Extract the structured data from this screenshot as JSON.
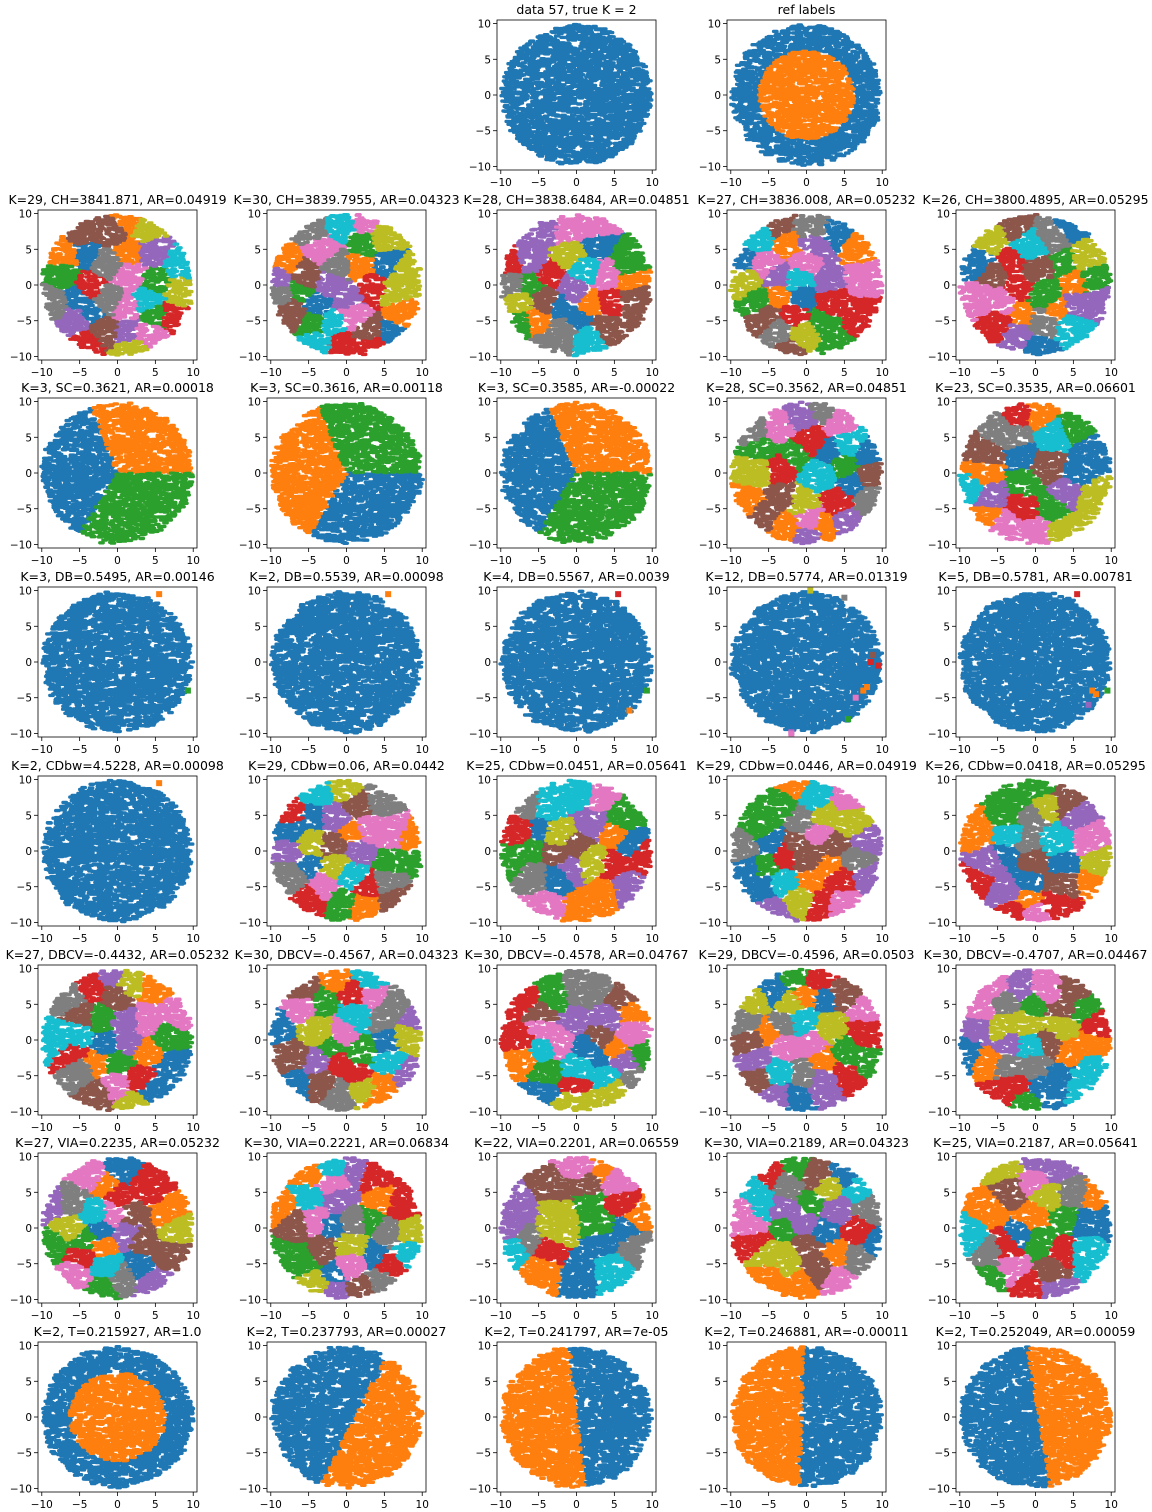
{
  "palette": [
    "#1f77b4",
    "#ff7f0e",
    "#2ca02c",
    "#d62728",
    "#9467bd",
    "#8c564b",
    "#e377c2",
    "#7f7f7f",
    "#bcbd22",
    "#17becf"
  ],
  "chart_data": [
    {
      "type": "scatter",
      "title": "data 57, true K = 2",
      "pattern": "all",
      "k": 1,
      "xlim": [
        -10.5,
        10.5
      ],
      "ylim": [
        -10.5,
        10.5
      ],
      "xticks": [
        -10,
        -5,
        0,
        5,
        10
      ],
      "yticks": [
        -10,
        -5,
        0,
        5,
        10
      ],
      "grid": false
    },
    {
      "type": "scatter",
      "title": "ref labels",
      "pattern": "ring",
      "k": 2,
      "xlim": [
        -10.5,
        10.5
      ],
      "ylim": [
        -10.5,
        10.5
      ],
      "xticks": [
        -10,
        -5,
        0,
        5,
        10
      ],
      "yticks": [
        -10,
        -5,
        0,
        5,
        10
      ],
      "grid": false
    },
    {
      "type": "scatter",
      "title": "K=29, CH=3841.871, AR=0.04919",
      "pattern": "voronoi",
      "k": 29
    },
    {
      "type": "scatter",
      "title": "K=30, CH=3839.7955, AR=0.04323",
      "pattern": "voronoi",
      "k": 30
    },
    {
      "type": "scatter",
      "title": "K=28, CH=3838.6484, AR=0.04851",
      "pattern": "voronoi",
      "k": 28
    },
    {
      "type": "scatter",
      "title": "K=27, CH=3836.008, AR=0.05232",
      "pattern": "voronoi",
      "k": 27
    },
    {
      "type": "scatter",
      "title": "K=26, CH=3800.4895, AR=0.05295",
      "pattern": "voronoi",
      "k": 26
    },
    {
      "type": "scatter",
      "title": "K=3, SC=0.3621, AR=0.00018",
      "pattern": "sectors",
      "k": 3,
      "sector_order": [
        0,
        1,
        2
      ]
    },
    {
      "type": "scatter",
      "title": "K=3, SC=0.3616, AR=0.00118",
      "pattern": "sectors",
      "k": 3,
      "sector_order": [
        1,
        2,
        0
      ]
    },
    {
      "type": "scatter",
      "title": "K=3, SC=0.3585, AR=-0.00022",
      "pattern": "sectors",
      "k": 3,
      "sector_order": [
        0,
        1,
        2
      ]
    },
    {
      "type": "scatter",
      "title": "K=28, SC=0.3562, AR=0.04851",
      "pattern": "voronoi",
      "k": 28
    },
    {
      "type": "scatter",
      "title": "K=23, SC=0.3535, AR=0.06601",
      "pattern": "voronoi",
      "k": 23
    },
    {
      "type": "scatter",
      "title": "K=3, DB=0.5495, AR=0.00146",
      "pattern": "outliers",
      "k": 3,
      "outliers": [
        [
          5.5,
          9.5,
          1
        ],
        [
          9.3,
          -4,
          2
        ]
      ]
    },
    {
      "type": "scatter",
      "title": "K=2, DB=0.5539, AR=0.00098",
      "pattern": "outliers",
      "k": 2,
      "outliers": [
        [
          5.5,
          9.5,
          1
        ]
      ]
    },
    {
      "type": "scatter",
      "title": "K=4, DB=0.5567, AR=0.0039",
      "pattern": "outliers",
      "k": 4,
      "outliers": [
        [
          5.5,
          9.5,
          3
        ],
        [
          9.3,
          -4,
          2
        ],
        [
          7,
          -6.8,
          1
        ]
      ]
    },
    {
      "type": "scatter",
      "title": "K=12, DB=0.5774, AR=0.01319",
      "pattern": "outliers",
      "k": 12,
      "outliers": [
        [
          0.5,
          10,
          8
        ],
        [
          5,
          9,
          7
        ],
        [
          8.5,
          0,
          3
        ],
        [
          9.5,
          -0.5,
          3
        ],
        [
          8,
          -3.5,
          1
        ],
        [
          7.5,
          -4,
          1
        ],
        [
          6.5,
          -5,
          6
        ],
        [
          5.5,
          -8,
          2
        ],
        [
          -2,
          -9.8,
          4
        ],
        [
          -2,
          -10,
          6
        ],
        [
          8.8,
          1,
          5
        ]
      ]
    },
    {
      "type": "scatter",
      "title": "K=5, DB=0.5781, AR=0.00781",
      "pattern": "outliers",
      "k": 5,
      "outliers": [
        [
          5.5,
          9.5,
          3
        ],
        [
          9.5,
          -4,
          2
        ],
        [
          8,
          -4.5,
          1
        ],
        [
          7.5,
          -4,
          1
        ],
        [
          7,
          -6,
          4
        ]
      ]
    },
    {
      "type": "scatter",
      "title": "K=2, CDbw=4.5228, AR=0.00098",
      "pattern": "outliers",
      "k": 2,
      "outliers": [
        [
          5.5,
          9.5,
          1
        ]
      ]
    },
    {
      "type": "scatter",
      "title": "K=29, CDbw=0.06, AR=0.0442",
      "pattern": "voronoi",
      "k": 29
    },
    {
      "type": "scatter",
      "title": "K=25, CDbw=0.0451, AR=0.05641",
      "pattern": "voronoi",
      "k": 25
    },
    {
      "type": "scatter",
      "title": "K=29, CDbw=0.0446, AR=0.04919",
      "pattern": "voronoi",
      "k": 29
    },
    {
      "type": "scatter",
      "title": "K=26, CDbw=0.0418, AR=0.05295",
      "pattern": "voronoi",
      "k": 26
    },
    {
      "type": "scatter",
      "title": "K=27, DBCV=-0.4432, AR=0.05232",
      "pattern": "voronoi",
      "k": 27
    },
    {
      "type": "scatter",
      "title": "K=30, DBCV=-0.4567, AR=0.04323",
      "pattern": "voronoi",
      "k": 30
    },
    {
      "type": "scatter",
      "title": "K=30, DBCV=-0.4578, AR=0.04767",
      "pattern": "voronoi",
      "k": 30
    },
    {
      "type": "scatter",
      "title": "K=29, DBCV=-0.4596, AR=0.0503",
      "pattern": "voronoi",
      "k": 29
    },
    {
      "type": "scatter",
      "title": "K=30, DBCV=-0.4707, AR=0.04467",
      "pattern": "voronoi",
      "k": 30
    },
    {
      "type": "scatter",
      "title": "K=27, VIA=0.2235, AR=0.05232",
      "pattern": "voronoi",
      "k": 27
    },
    {
      "type": "scatter",
      "title": "K=30, VIA=0.2221, AR=0.06834",
      "pattern": "voronoi",
      "k": 30
    },
    {
      "type": "scatter",
      "title": "K=22, VIA=0.2201, AR=0.06559",
      "pattern": "voronoi",
      "k": 22
    },
    {
      "type": "scatter",
      "title": "K=30, VIA=0.2189, AR=0.04323",
      "pattern": "voronoi",
      "k": 30
    },
    {
      "type": "scatter",
      "title": "K=25, VIA=0.2187, AR=0.05641",
      "pattern": "voronoi",
      "k": 25
    },
    {
      "type": "scatter",
      "title": "K=2, T=0.215927, AR=1.0",
      "pattern": "ring",
      "k": 2
    },
    {
      "type": "scatter",
      "title": "K=2, T=0.237793, AR=0.00027",
      "pattern": "halfplane",
      "k": 2,
      "line": [
        [
          -3.5,
          -10
        ],
        [
          6,
          10
        ]
      ],
      "left_color": 0,
      "right_color": 1
    },
    {
      "type": "scatter",
      "title": "K=2, T=0.241797, AR=7e-05",
      "pattern": "halfplane",
      "k": 2,
      "line": [
        [
          1,
          -10
        ],
        [
          -1,
          10
        ]
      ],
      "left_color": 1,
      "right_color": 0
    },
    {
      "type": "scatter",
      "title": "K=2, T=0.246881, AR=-0.00011",
      "pattern": "halfplane",
      "k": 2,
      "line": [
        [
          -1,
          -10
        ],
        [
          -0.5,
          10
        ]
      ],
      "left_color": 1,
      "right_color": 0
    },
    {
      "type": "scatter",
      "title": "K=2, T=0.252049, AR=0.00059",
      "pattern": "halfplane",
      "k": 2,
      "line": [
        [
          2,
          -10
        ],
        [
          -1,
          10
        ]
      ],
      "left_color": 0,
      "right_color": 1
    }
  ],
  "axes_defaults": {
    "xlim": [
      -10.5,
      10.5
    ],
    "ylim": [
      -10.5,
      10.5
    ],
    "xticks": [
      -10,
      -5,
      0,
      5,
      10
    ],
    "yticks": [
      -10,
      -5,
      0,
      5,
      10
    ]
  }
}
